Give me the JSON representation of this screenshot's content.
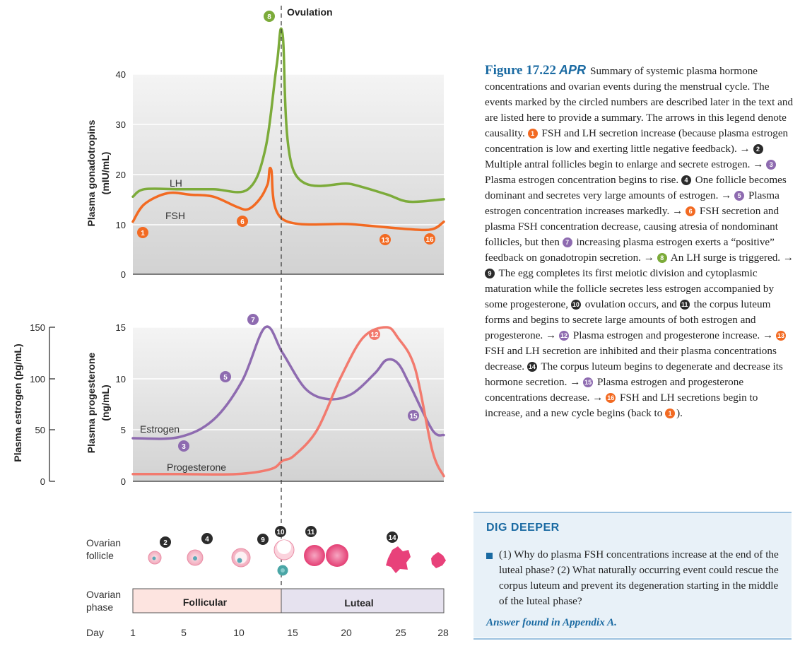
{
  "ovulation_label": "Ovulation",
  "top_chart": {
    "ylabel": "Plasma gonadotropins",
    "yunit": "(mIU/mL)",
    "ticks": [
      "0",
      "10",
      "20",
      "30",
      "40"
    ],
    "lh_label": "LH",
    "fsh_label": "FSH"
  },
  "bottom_chart": {
    "estrogen_axis_label": "Plasma estrogen (pg/mL)",
    "estrogen_ticks": [
      "0",
      "50",
      "100",
      "150"
    ],
    "progesterone_axis_label": "Plasma progesterone",
    "progesterone_unit": "(ng/mL)",
    "progesterone_ticks": [
      "0",
      "5",
      "10",
      "15"
    ],
    "estrogen_label": "Estrogen",
    "progesterone_label": "Progesterone"
  },
  "follicle": {
    "label_1": "Ovarian",
    "label_2": "follicle"
  },
  "phase": {
    "label_1": "Ovarian",
    "label_2": "phase",
    "follicular": "Follicular",
    "luteal": "Luteal"
  },
  "day": {
    "label": "Day",
    "ticks": [
      "1",
      "5",
      "10",
      "15",
      "20",
      "25",
      "28"
    ]
  },
  "badges": [
    "1",
    "2",
    "3",
    "4",
    "5",
    "6",
    "7",
    "8",
    "9",
    "10",
    "11",
    "12",
    "13",
    "14",
    "15",
    "16"
  ],
  "colors": {
    "lh": "#7cab3a",
    "fsh": "#f26a22",
    "estrogen": "#8e6bb0",
    "progesterone": "#f27a6e",
    "follicular": "#fde4e0",
    "luteal": "#e6e2ef",
    "accent": "#1a6aa2"
  },
  "chart_data": [
    {
      "type": "line",
      "ylim": [
        0,
        40
      ],
      "xlim": [
        1,
        28
      ],
      "series": [
        {
          "name": "LH",
          "x": [
            1,
            2,
            5,
            8,
            11,
            12.5,
            13.5,
            14,
            15,
            20,
            23,
            25,
            28
          ],
          "y": [
            15.5,
            17,
            17,
            17,
            17,
            25,
            42,
            48,
            20.5,
            18,
            16,
            14.5,
            15
          ]
        },
        {
          "name": "FSH",
          "x": [
            1,
            2,
            4,
            6,
            8,
            10,
            11,
            12,
            12.7,
            13,
            14,
            20,
            25,
            27,
            28
          ],
          "y": [
            10.5,
            14,
            16.2,
            15.9,
            15.5,
            13.5,
            13,
            15,
            18,
            21,
            11,
            10,
            9,
            9,
            10.5
          ]
        }
      ]
    },
    {
      "type": "line",
      "x_range": [
        1,
        28
      ],
      "series": [
        {
          "name": "Estrogen",
          "axis": "Plasma estrogen (pg/mL)",
          "ylim": [
            0,
            150
          ],
          "x": [
            1,
            5,
            8,
            10.5,
            12.5,
            14,
            16,
            18,
            20,
            22,
            23,
            24,
            25,
            27,
            28
          ],
          "y": [
            42,
            43,
            60,
            98,
            150,
            125,
            90,
            80,
            85,
            105,
            118,
            115,
            95,
            50,
            45
          ]
        },
        {
          "name": "Progesterone",
          "axis": "Plasma progesterone (ng/mL)",
          "ylim": [
            0,
            15
          ],
          "x": [
            1,
            5,
            10,
            13,
            14,
            15,
            17,
            19,
            21,
            23,
            24,
            25.5,
            27,
            28
          ],
          "y": [
            0.7,
            0.7,
            0.7,
            1.2,
            2,
            2.5,
            5,
            10,
            14,
            15,
            14,
            11,
            3,
            0.5
          ]
        }
      ]
    }
  ],
  "legend": {
    "figure_number": "Figure 17.22",
    "apr": "APR",
    "intro": "Summary of systemic plasma hormone concentrations and ovarian events during the menstrual cycle. The events marked by the circled numbers are described later in the text and are listed here to provide a summary. The arrows in this legend denote causality.",
    "steps": [
      "FSH and LH secretion increase (because plasma estrogen concentration is low and exerting little negative feedback). →",
      "Multiple antral follicles begin to enlarge and secrete estrogen. →",
      "Plasma estrogen concentration begins to rise.",
      "One follicle becomes dominant and secretes very large amounts of estrogen. →",
      "Plasma estrogen concentration increases markedly. →",
      "FSH secretion and plasma FSH concentration decrease, causing atresia of nondominant follicles, but then",
      "increasing plasma estrogen exerts a “positive” feedback on gonadotropin secretion. →",
      "An LH surge is triggered. →",
      "The egg completes its first meiotic division and cytoplasmic maturation while the follicle secretes less estrogen accompanied by some progesterone,",
      "ovulation occurs, and",
      "the corpus luteum forms and begins to secrete large amounts of both estrogen and progesterone. →",
      "Plasma estrogen and progesterone increase. →",
      "FSH and LH secretion are inhibited and their plasma concentrations decrease.",
      "The corpus luteum begins to degenerate and decrease its hormone secretion. →",
      "Plasma estrogen and progesterone concentrations decrease. →",
      "FSH and LH secretions begin to increase, and a new cycle begins (back to",
      ")."
    ]
  },
  "dig_deeper": {
    "title": "DIG DEEPER",
    "question": "(1) Why do plasma FSH concentrations increase at the end of the luteal phase? (2) What naturally occurring event could rescue the corpus luteum and prevent its degeneration starting in the middle of the luteal phase?",
    "answer": "Answer found in Appendix A."
  }
}
